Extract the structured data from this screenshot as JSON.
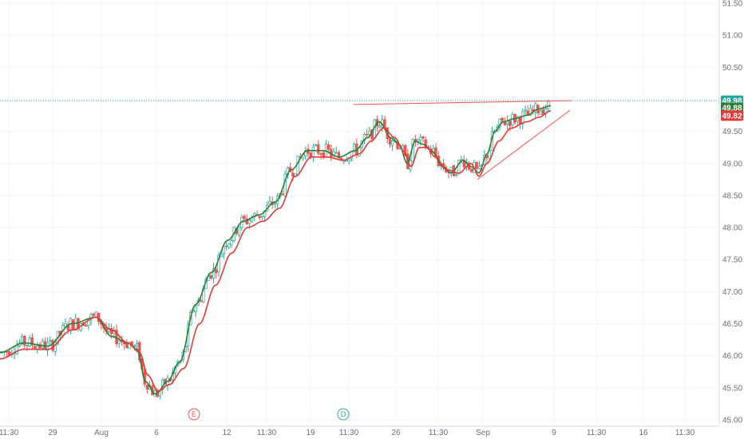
{
  "chart_data": {
    "type": "candlestick",
    "y_axis": {
      "ticks": [
        "51.50",
        "51.00",
        "50.50",
        "50.00",
        "49.50",
        "49.00",
        "48.50",
        "48.00",
        "47.50",
        "47.00",
        "46.50",
        "46.00",
        "45.50",
        "45.00"
      ],
      "range": [
        44.9,
        51.55
      ]
    },
    "x_axis": {
      "ticks": [
        "11:30",
        "29",
        "Aug",
        "6",
        "12",
        "11:30",
        "19",
        "11:30",
        "26",
        "11:30",
        "Sep",
        "9",
        "11:30",
        "16",
        "11:30"
      ]
    },
    "price_badges": [
      {
        "value": "49.98",
        "color": "#26a69a"
      },
      {
        "value": "49.88",
        "color": "#2e7d32"
      },
      {
        "value": "49.82",
        "color": "#e53935"
      }
    ],
    "reference_line": {
      "value": 49.98,
      "color": "#26a69a"
    },
    "events": [
      {
        "label": "E",
        "color": "#ef5350"
      },
      {
        "label": "D",
        "color": "#26a69a"
      }
    ],
    "series": [
      {
        "name": "",
        "color": "#2e7d32",
        "anchors": [
          [
            0,
            46.05
          ],
          [
            30,
            46.2
          ],
          [
            60,
            46.15
          ],
          [
            90,
            46.5
          ],
          [
            120,
            46.6
          ],
          [
            140,
            46.3
          ],
          [
            160,
            46.2
          ],
          [
            172,
            46.1
          ],
          [
            182,
            45.6
          ],
          [
            195,
            45.4
          ],
          [
            210,
            45.6
          ],
          [
            225,
            45.9
          ],
          [
            245,
            46.8
          ],
          [
            265,
            47.3
          ],
          [
            285,
            47.8
          ],
          [
            305,
            48.1
          ],
          [
            325,
            48.2
          ],
          [
            345,
            48.4
          ],
          [
            365,
            48.9
          ],
          [
            385,
            49.2
          ],
          [
            405,
            49.2
          ],
          [
            425,
            49.1
          ],
          [
            445,
            49.2
          ],
          [
            460,
            49.4
          ],
          [
            475,
            49.65
          ],
          [
            490,
            49.4
          ],
          [
            500,
            49.3
          ],
          [
            510,
            49.0
          ],
          [
            520,
            49.35
          ],
          [
            530,
            49.3
          ],
          [
            540,
            49.2
          ],
          [
            555,
            48.95
          ],
          [
            565,
            48.85
          ],
          [
            580,
            49.05
          ],
          [
            590,
            48.95
          ],
          [
            600,
            48.85
          ],
          [
            610,
            49.15
          ],
          [
            620,
            49.5
          ],
          [
            630,
            49.65
          ],
          [
            645,
            49.7
          ],
          [
            660,
            49.75
          ],
          [
            675,
            49.85
          ],
          [
            690,
            49.9
          ]
        ]
      },
      {
        "name": "",
        "color": "#e53935",
        "anchors": [
          [
            0,
            45.95
          ],
          [
            30,
            46.1
          ],
          [
            60,
            46.1
          ],
          [
            90,
            46.4
          ],
          [
            120,
            46.6
          ],
          [
            140,
            46.4
          ],
          [
            160,
            46.2
          ],
          [
            175,
            46.05
          ],
          [
            185,
            45.7
          ],
          [
            198,
            45.45
          ],
          [
            212,
            45.55
          ],
          [
            230,
            45.8
          ],
          [
            250,
            46.5
          ],
          [
            270,
            47.1
          ],
          [
            290,
            47.6
          ],
          [
            310,
            48.0
          ],
          [
            330,
            48.1
          ],
          [
            350,
            48.3
          ],
          [
            370,
            48.8
          ],
          [
            390,
            49.1
          ],
          [
            410,
            49.1
          ],
          [
            430,
            49.05
          ],
          [
            450,
            49.15
          ],
          [
            465,
            49.35
          ],
          [
            480,
            49.55
          ],
          [
            495,
            49.4
          ],
          [
            505,
            49.2
          ],
          [
            515,
            48.95
          ],
          [
            525,
            49.25
          ],
          [
            535,
            49.25
          ],
          [
            545,
            49.1
          ],
          [
            560,
            48.9
          ],
          [
            575,
            48.85
          ],
          [
            590,
            49.0
          ],
          [
            600,
            48.8
          ],
          [
            610,
            49.0
          ],
          [
            625,
            49.35
          ],
          [
            640,
            49.55
          ],
          [
            660,
            49.65
          ],
          [
            675,
            49.72
          ],
          [
            690,
            49.82
          ]
        ]
      }
    ],
    "trendlines": [
      {
        "points": [
          [
            443,
            49.92
          ],
          [
            716,
            49.98
          ]
        ],
        "color": "#ef5350"
      },
      {
        "points": [
          [
            598,
            48.75
          ],
          [
            714,
            49.83
          ]
        ],
        "color": "#ef5350"
      }
    ]
  }
}
